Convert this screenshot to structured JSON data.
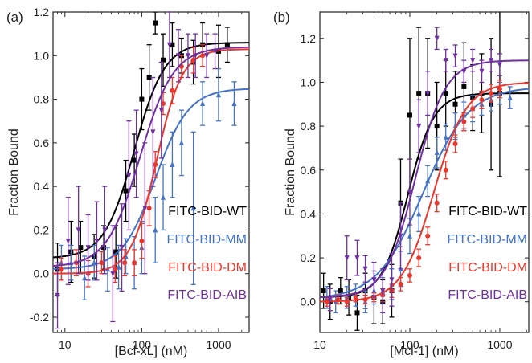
{
  "chart_data": [
    {
      "panel_label": "(a)",
      "type": "scatter",
      "xscale": "log",
      "xlabel": "[Bcl-xL] (nM)",
      "ylabel": "Fraction Bound",
      "xlim": [
        7,
        2500
      ],
      "ylim": [
        -0.27,
        1.2
      ],
      "xticks": [
        10,
        100,
        1000
      ],
      "xtick_labels": [
        "10",
        "100",
        "1000"
      ],
      "yticks": [
        -0.2,
        0,
        0.2,
        0.4,
        0.6,
        0.8,
        1.0,
        1.2
      ],
      "ytick_labels": [
        "-0.2",
        "0.0",
        "0.2",
        "0.4",
        "0.6",
        "0.8",
        "1.0",
        "1.2"
      ],
      "legend_position": "lower-right",
      "series": [
        {
          "name": "FITC-BID-WT",
          "color": "#000000",
          "marker": "square",
          "fit": {
            "bottom": 0.07,
            "top": 1.06,
            "ec50": 80,
            "hill": 2.2
          },
          "x": [
            8,
            12,
            16,
            24,
            32,
            46,
            62,
            80,
            100,
            125,
            150,
            190,
            250,
            330,
            470,
            620,
            1000,
            1300
          ],
          "y": [
            0.02,
            0.1,
            0.12,
            0.08,
            0.12,
            0.1,
            0.38,
            0.52,
            0.8,
            0.9,
            1.15,
            0.98,
            1.05,
            1.0,
            0.97,
            1.05,
            1.02,
            1.05
          ],
          "err": [
            0.12,
            0.14,
            0.12,
            0.1,
            0.1,
            0.12,
            0.14,
            0.12,
            0.14,
            0.15,
            0.05,
            0.12,
            0.1,
            0.08,
            0.1,
            0.1,
            0.12,
            0.08
          ]
        },
        {
          "name": "FITC-BID-MM",
          "color": "#4472c4",
          "marker": "triangle",
          "fit": {
            "bottom": 0.02,
            "top": 0.85,
            "ec50": 150,
            "hill": 2.0
          },
          "x": [
            9,
            12,
            18,
            24,
            36,
            50,
            62,
            80,
            100,
            150,
            190,
            250,
            330,
            470,
            620,
            1000,
            1600
          ],
          "y": [
            0.05,
            0.05,
            -0.02,
            0.05,
            0.02,
            0.03,
            0.08,
            0.05,
            0.12,
            0.2,
            0.35,
            0.5,
            0.6,
            0.3,
            0.78,
            0.82,
            0.78
          ],
          "err": [
            0.08,
            0.08,
            0.1,
            0.08,
            0.1,
            0.1,
            0.08,
            0.12,
            0.12,
            0.15,
            0.15,
            0.15,
            0.15,
            0.35,
            0.1,
            0.12,
            0.1
          ]
        },
        {
          "name": "FITC-BID-DM",
          "color": "#e8372c",
          "marker": "circle",
          "fit": {
            "bottom": 0.0,
            "top": 1.03,
            "ec50": 155,
            "hill": 2.6
          },
          "x": [
            9,
            14,
            20,
            30,
            45,
            60,
            80,
            100,
            125,
            150,
            190,
            250,
            330,
            470,
            620
          ],
          "y": [
            0.02,
            0.05,
            0.0,
            0.05,
            0.02,
            0.05,
            0.05,
            0.15,
            0.3,
            0.5,
            0.78,
            0.84,
            0.95,
            0.98,
            1.0
          ],
          "err": [
            0.05,
            0.06,
            0.06,
            0.05,
            0.06,
            0.06,
            0.06,
            0.08,
            0.08,
            0.06,
            0.05,
            0.06,
            0.05,
            0.06,
            0.05
          ]
        },
        {
          "name": "FITC-BID-AIB",
          "color": "#7030a0",
          "marker": "triangle-down",
          "fit": {
            "bottom": 0.03,
            "top": 1.04,
            "ec50": 95,
            "hill": 2.0
          },
          "x": [
            8,
            11,
            15,
            20,
            26,
            33,
            42,
            55,
            68,
            85,
            110,
            140,
            180,
            230,
            300,
            400,
            500,
            700,
            900
          ],
          "y": [
            -0.1,
            0.15,
            0.2,
            0.12,
            0.15,
            0.2,
            0.0,
            0.12,
            0.45,
            0.55,
            0.3,
            0.65,
            0.75,
            1.05,
            1.0,
            1.0,
            1.0,
            1.0,
            1.02
          ],
          "err": [
            0.15,
            0.2,
            0.2,
            0.15,
            0.18,
            0.2,
            0.22,
            0.2,
            0.25,
            0.2,
            0.3,
            0.25,
            0.22,
            0.15,
            0.12,
            0.1,
            0.1,
            0.1,
            0.08
          ]
        }
      ]
    },
    {
      "panel_label": "(b)",
      "type": "scatter",
      "xscale": "log",
      "xlabel": "[Mcl-1] (nM)",
      "ylabel": "Fraction Bound",
      "xlim": [
        10,
        2100
      ],
      "ylim": [
        -0.14,
        1.32
      ],
      "xticks": [
        10,
        100,
        1000
      ],
      "xtick_labels": [
        "10",
        "100",
        "1000"
      ],
      "yticks": [
        0,
        0.2,
        0.4,
        0.6,
        0.8,
        1.0,
        1.2
      ],
      "ytick_labels": [
        "0.0",
        "0.2",
        "0.4",
        "0.6",
        "0.8",
        "1.0",
        "1.2"
      ],
      "legend_position": "lower-right",
      "series": [
        {
          "name": "FITC-BID-WT",
          "color": "#000000",
          "marker": "square",
          "fit": {
            "bottom": 0.02,
            "top": 0.95,
            "ec50": 95,
            "hill": 3.0
          },
          "x": [
            11,
            13,
            17,
            21,
            26,
            32,
            40,
            50,
            63,
            79,
            100,
            126,
            158,
            200,
            251,
            320,
            400,
            500,
            630,
            800,
            1000
          ],
          "y": [
            0.05,
            0.0,
            0.05,
            0.02,
            -0.05,
            0.05,
            0.02,
            0.0,
            0.05,
            0.45,
            0.85,
            0.95,
            0.95,
            0.8,
            0.95,
            0.9,
            0.98,
            0.93,
            0.95,
            0.9,
            0.95
          ],
          "err": [
            0.08,
            0.08,
            0.06,
            0.08,
            0.08,
            0.08,
            0.12,
            0.1,
            0.12,
            0.2,
            0.35,
            0.3,
            0.25,
            0.2,
            0.15,
            0.15,
            0.2,
            0.15,
            0.18,
            0.3,
            0.38
          ]
        },
        {
          "name": "FITC-BID-MM",
          "color": "#4472c4",
          "marker": "triangle",
          "fit": {
            "bottom": 0.01,
            "top": 0.98,
            "ec50": 140,
            "hill": 1.7
          },
          "x": [
            12,
            15,
            20,
            25,
            32,
            40,
            50,
            63,
            79,
            100,
            126,
            158,
            200,
            251,
            320,
            400,
            500,
            630,
            800,
            1000,
            1300
          ],
          "y": [
            0.02,
            0.0,
            0.02,
            0.03,
            0.0,
            0.05,
            0.05,
            0.08,
            0.15,
            0.3,
            0.4,
            0.55,
            0.68,
            0.75,
            0.8,
            0.85,
            0.88,
            0.9,
            0.92,
            0.95,
            0.93
          ],
          "err": [
            0.05,
            0.05,
            0.05,
            0.05,
            0.05,
            0.06,
            0.06,
            0.07,
            0.08,
            0.08,
            0.08,
            0.07,
            0.07,
            0.06,
            0.06,
            0.06,
            0.06,
            0.05,
            0.05,
            0.05,
            0.05
          ]
        },
        {
          "name": "FITC-BID-DM",
          "color": "#e8372c",
          "marker": "circle",
          "fit": {
            "bottom": 0.0,
            "top": 1.0,
            "ec50": 185,
            "hill": 2.4
          },
          "x": [
            12,
            16,
            20,
            25,
            32,
            40,
            50,
            63,
            79,
            100,
            126,
            158,
            200,
            251,
            320,
            400,
            500,
            630,
            800,
            1000
          ],
          "y": [
            0.0,
            0.01,
            0.0,
            0.02,
            0.01,
            0.02,
            0.03,
            0.05,
            0.08,
            0.12,
            0.2,
            0.3,
            0.45,
            0.6,
            0.72,
            0.82,
            0.88,
            0.92,
            0.95,
            0.97
          ],
          "err": [
            0.02,
            0.02,
            0.02,
            0.02,
            0.02,
            0.02,
            0.03,
            0.03,
            0.03,
            0.03,
            0.04,
            0.04,
            0.04,
            0.04,
            0.04,
            0.04,
            0.04,
            0.04,
            0.04,
            0.04
          ]
        },
        {
          "name": "FITC-BID-AIB",
          "color": "#7030a0",
          "marker": "triangle-down",
          "fit": {
            "bottom": 0.02,
            "top": 1.1,
            "ec50": 115,
            "hill": 2.6
          },
          "x": [
            13,
            20,
            26,
            32,
            40,
            50,
            63,
            79,
            100,
            126,
            158,
            200,
            251,
            320,
            400,
            500,
            630,
            800,
            1000
          ],
          "y": [
            0.01,
            0.2,
            0.2,
            0.15,
            0.1,
            0.05,
            0.1,
            0.3,
            0.5,
            0.8,
            0.95,
            1.2,
            1.1,
            1.12,
            1.05,
            1.1,
            1.05,
            1.1,
            1.08
          ],
          "err": [
            0.05,
            0.1,
            0.08,
            0.06,
            0.08,
            0.1,
            0.12,
            0.15,
            0.15,
            0.12,
            0.1,
            0.05,
            0.05,
            0.05,
            0.05,
            0.05,
            0.05,
            0.05,
            0.05
          ]
        }
      ]
    }
  ]
}
